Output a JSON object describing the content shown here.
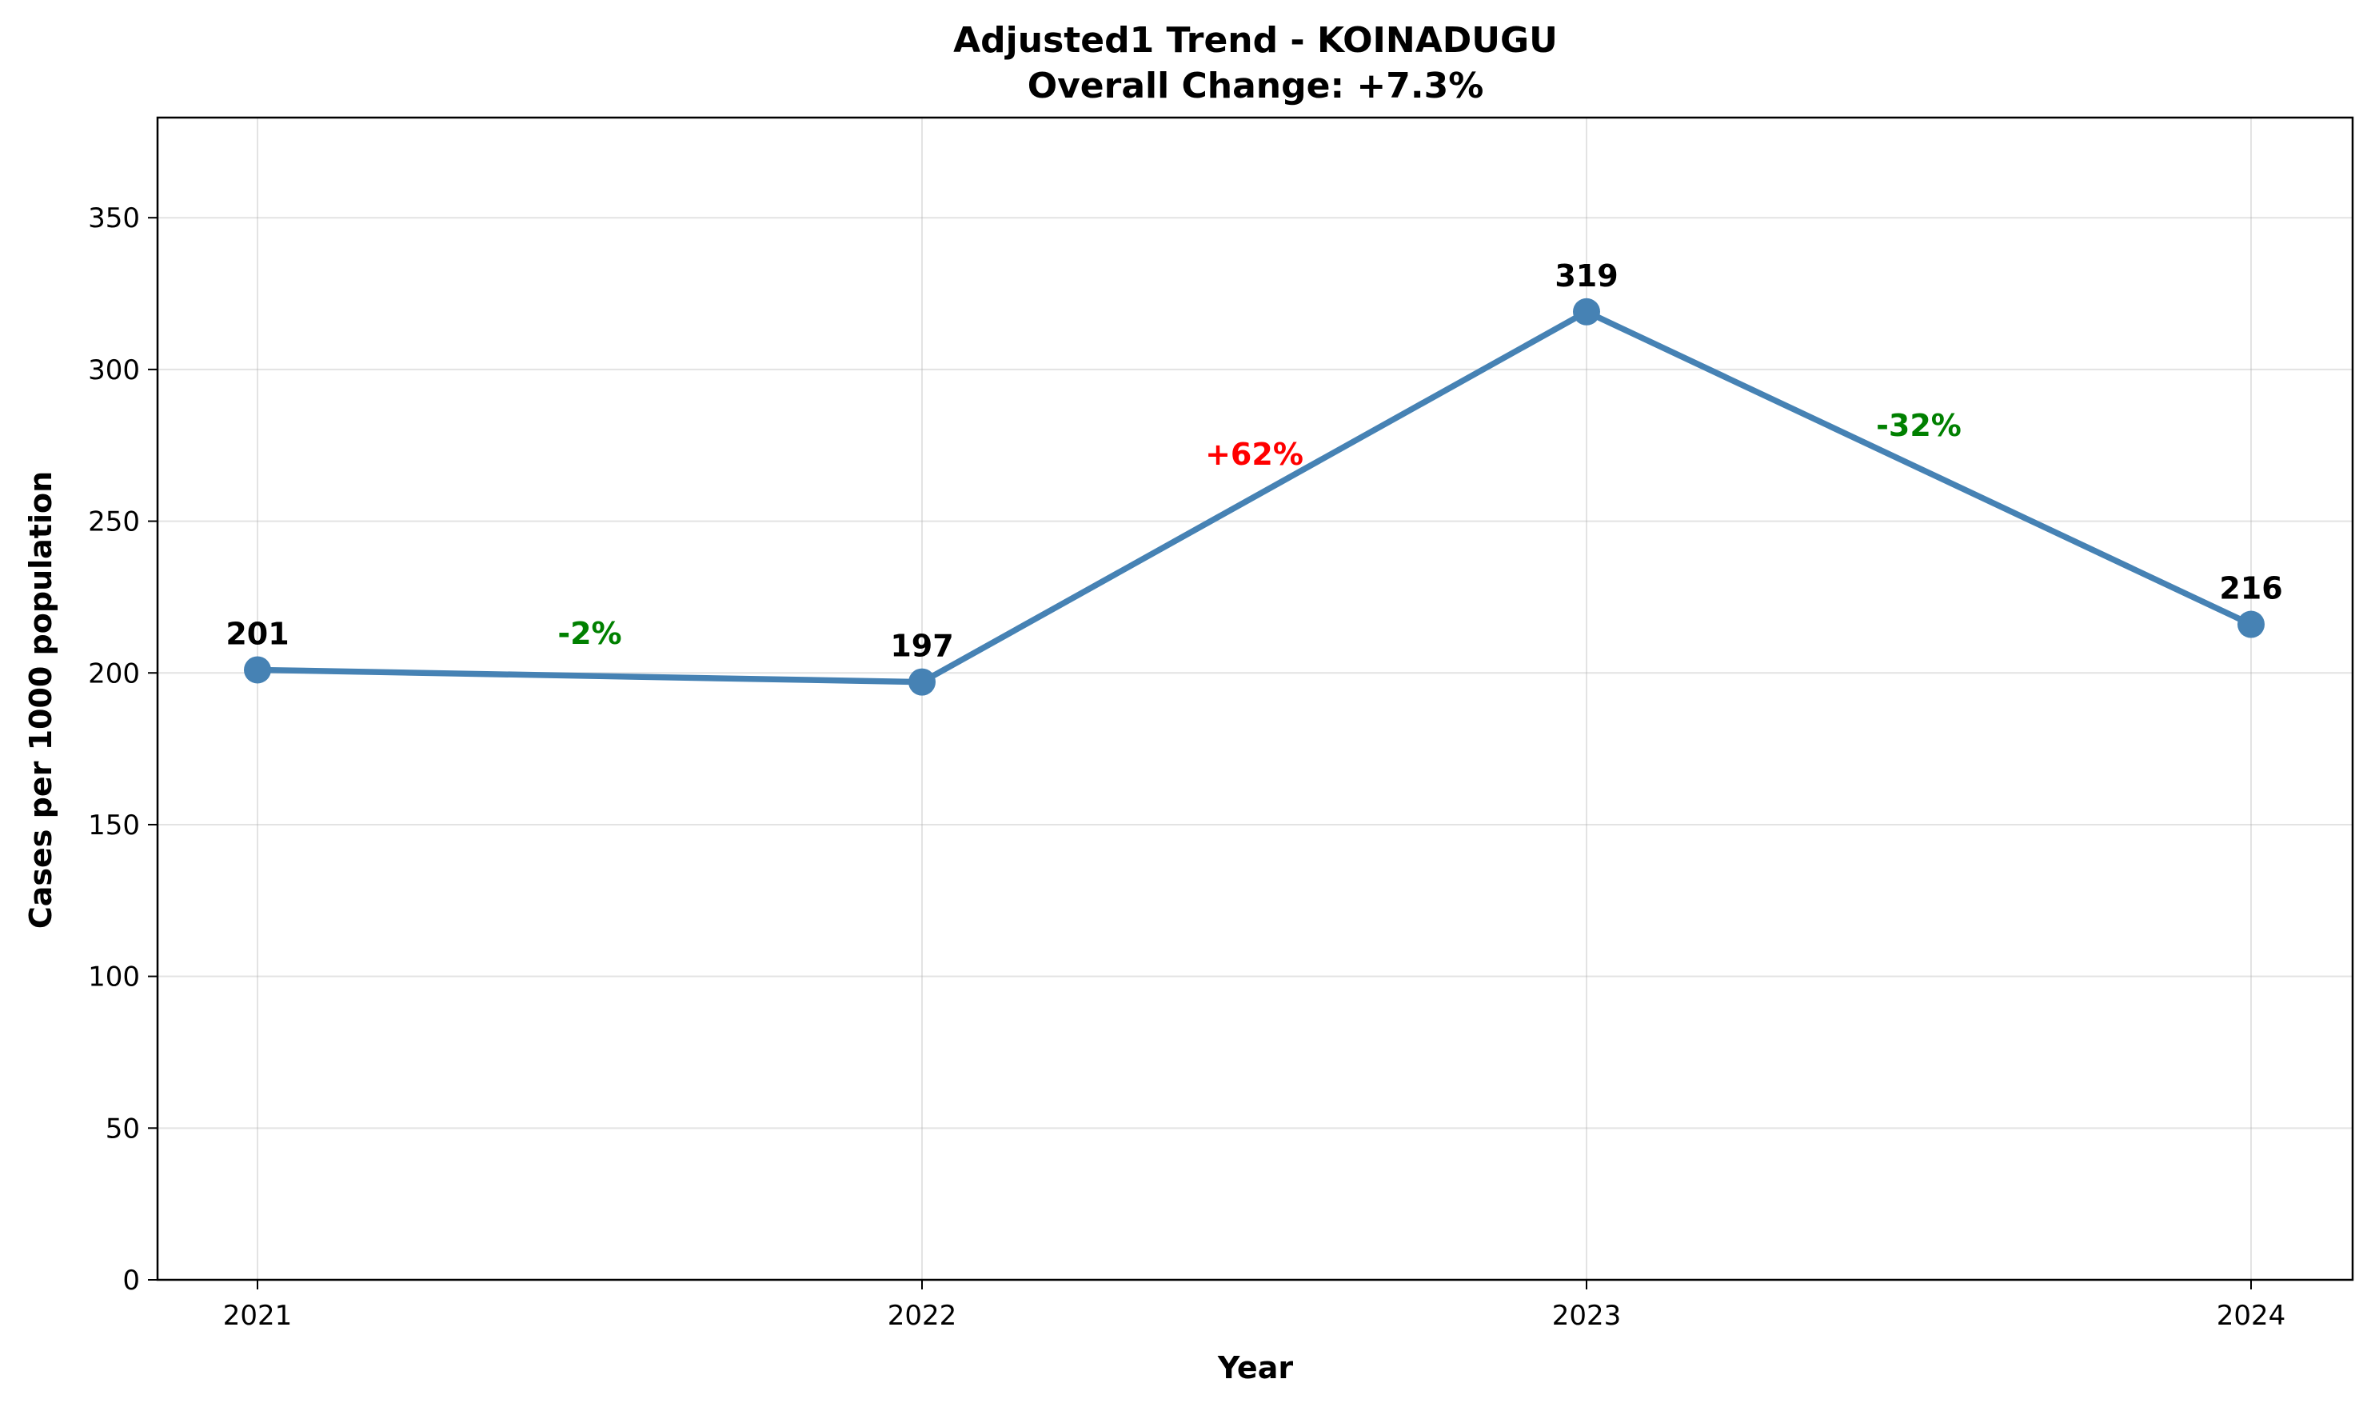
{
  "chart_data": {
    "type": "line",
    "title": "Adjusted1 Trend - KOINADUGU",
    "subtitle": "Overall Change: +7.3%",
    "xlabel": "Year",
    "ylabel": "Cases per 1000 population",
    "x": [
      "2021",
      "2022",
      "2023",
      "2024"
    ],
    "series": [
      {
        "values": [
          201,
          197,
          319,
          216
        ],
        "color": "#4682b4"
      }
    ],
    "data_labels": [
      "201",
      "197",
      "319",
      "216"
    ],
    "changes": [
      {
        "label": "-2%",
        "value": -2,
        "color": "#008000"
      },
      {
        "label": "+62%",
        "value": 62,
        "color": "#ff0000"
      },
      {
        "label": "-32%",
        "value": -32,
        "color": "#008000"
      }
    ],
    "ylim": [
      0,
      383
    ],
    "yticks": [
      "0",
      "50",
      "100",
      "150",
      "200",
      "250",
      "300",
      "350"
    ],
    "grid": true,
    "legend": "none"
  }
}
